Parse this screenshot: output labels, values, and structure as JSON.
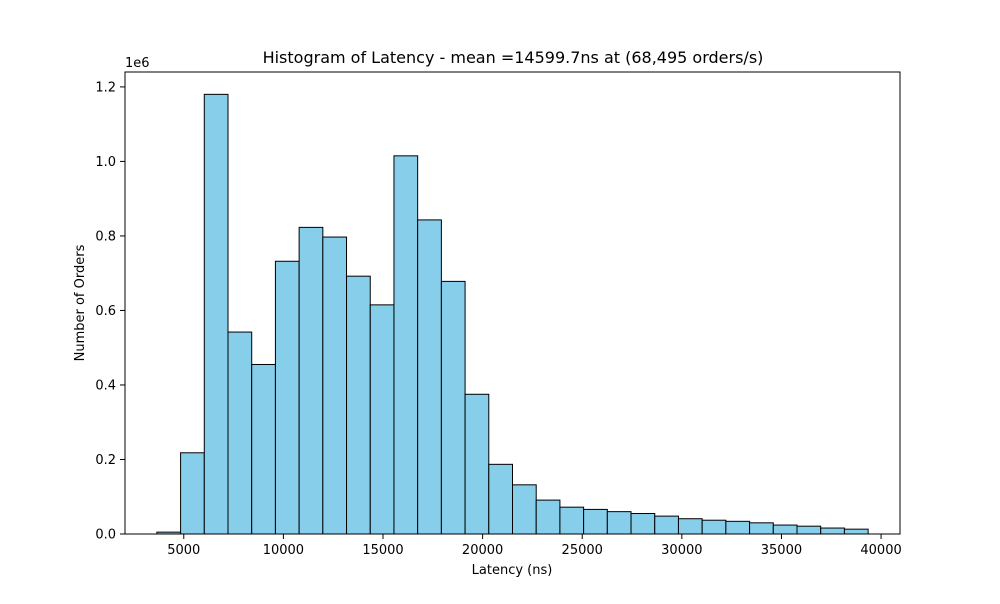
{
  "chart_data": {
    "type": "bar",
    "title": "Histogram of Latency - mean =14599.7ns at (68,495 orders/s)",
    "xlabel": "Latency (ns)",
    "ylabel": "Number of Orders",
    "y_offset_label": "1e6",
    "xlim": [
      2050,
      40950
    ],
    "ylim": [
      0,
      1240000
    ],
    "x_ticks": [
      5000,
      10000,
      15000,
      20000,
      25000,
      30000,
      35000,
      40000
    ],
    "x_tick_labels": [
      "5000",
      "10000",
      "15000",
      "20000",
      "25000",
      "30000",
      "35000",
      "40000"
    ],
    "y_ticks": [
      0,
      200000,
      400000,
      600000,
      800000,
      1000000,
      1200000
    ],
    "y_tick_labels": [
      "0.0",
      "0.2",
      "0.4",
      "0.6",
      "0.8",
      "1.0",
      "1.2"
    ],
    "bin_start": 3650,
    "bin_width": 1190,
    "values": [
      5000,
      218000,
      1180000,
      542000,
      455000,
      732000,
      823000,
      797000,
      692000,
      615000,
      1015000,
      843000,
      678000,
      375000,
      187000,
      132000,
      91000,
      72000,
      66000,
      60000,
      55000,
      48000,
      41000,
      37000,
      34000,
      30000,
      24000,
      21000,
      16000,
      13000
    ],
    "bar_color": "#87ceeb",
    "edge_color": "#000000",
    "grid": false,
    "legend": "none"
  }
}
